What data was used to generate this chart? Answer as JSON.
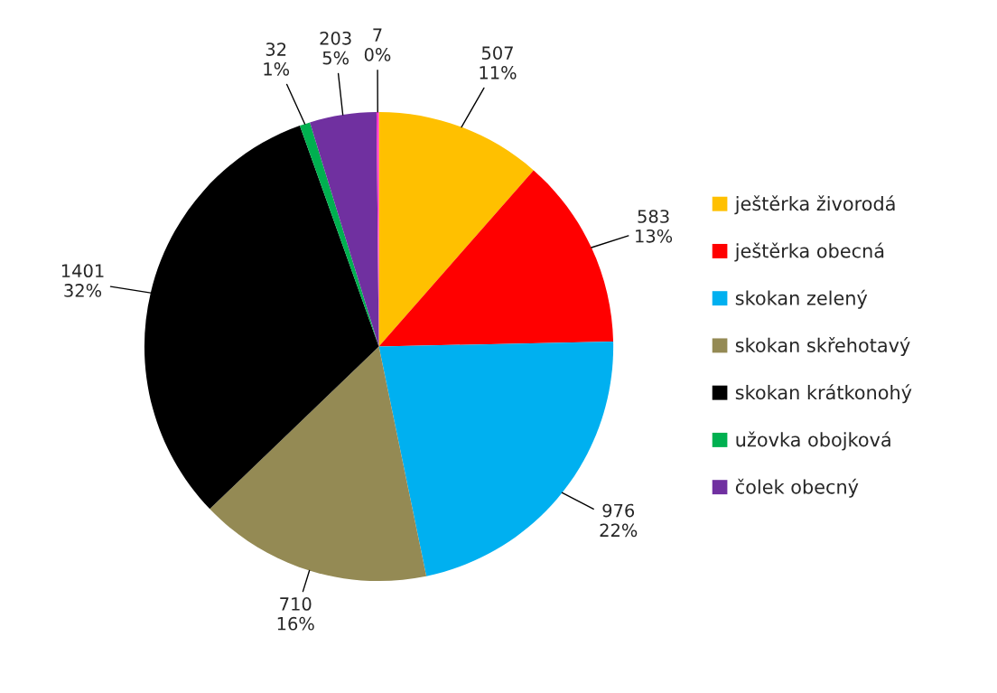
{
  "chart_data": {
    "type": "pie",
    "categories": [
      "ještěrka živorodá",
      "ještěrka obecná",
      "skokan zelený",
      "skokan skřehotavý",
      "skokan krátkonohý",
      "užovka obojková",
      "čolek obecný",
      null
    ],
    "values": [
      507,
      583,
      976,
      710,
      1401,
      32,
      203,
      7
    ],
    "colors": [
      "#ffc000",
      "#ff0000",
      "#00b0f0",
      "#948a54",
      "#000000",
      "#00b050",
      "#7030a0",
      "#ff33cc"
    ],
    "value_labels": [
      "507\n11%",
      "583\n13%",
      "976\n22%",
      "710\n16%",
      "1401\n32%",
      "32\n1%",
      "203\n5%",
      "7\n0%"
    ],
    "legend": "right"
  }
}
